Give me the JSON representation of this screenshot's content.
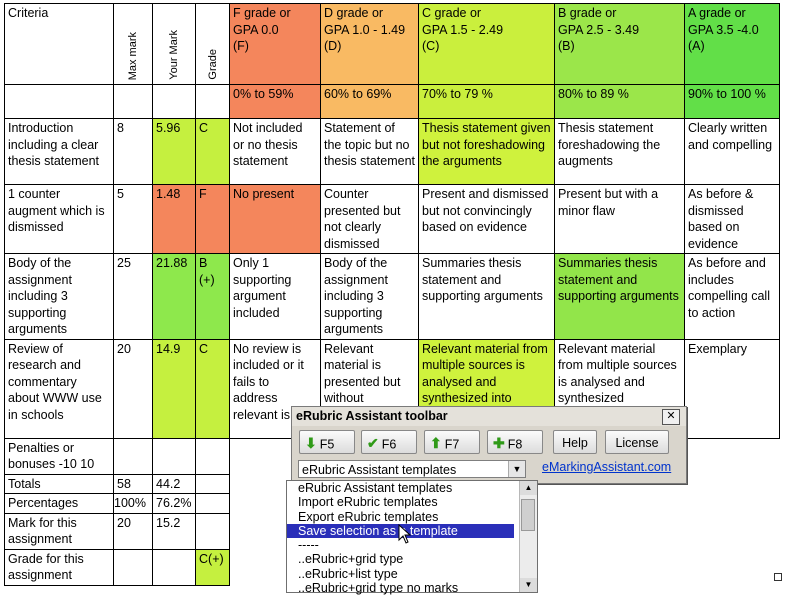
{
  "header": {
    "criteria": "Criteria",
    "max_mark": "Max mark",
    "your_mark": "Your Mark",
    "grade": "Grade",
    "f_head": "F grade or\nGPA 0.0\n(F)",
    "d_head": "D grade or\nGPA 1.0 - 1.49\n(D)",
    "c_head": "C grade or\nGPA 1.5 - 2.49\n(C)",
    "b_head": "B grade or\nGPA 2.5 - 3.49\n(B)",
    "a_head": "A grade or\nGPA 3.5 -4.0\n(A)",
    "f_range": "0% to 59%",
    "d_range": "60% to 69%",
    "c_range": "70% to 79 %",
    "b_range": "80% to 89 %",
    "a_range": "90% to 100 %"
  },
  "rows": [
    {
      "criteria": "Introduction including a clear thesis statement",
      "max": "8",
      "mark": "5.96",
      "grade": "C",
      "f": "Not included or no thesis statement",
      "d": "Statement of the topic but no thesis statement",
      "c": "Thesis statement given but not foreshadowing the arguments",
      "b": "Thesis statement foreshadowing the augments",
      "a": "Clearly written and compelling"
    },
    {
      "criteria": "1 counter augment which is dismissed",
      "max": "5",
      "mark": "1.48",
      "grade": "F",
      "f": "No present",
      "d": "Counter presented but not clearly dismissed",
      "c": "Present and dismissed  but not convincingly  based on evidence",
      "b": "Present but with a minor flaw",
      "a": "As before & dismissed based on evidence"
    },
    {
      "criteria": "Body of the assignment including 3 supporting arguments",
      "max": "25",
      "mark": "21.88",
      "grade": "B (+)",
      "f": "Only 1 supporting argument included",
      "d": "Body of the assignment including 3 supporting arguments",
      "c": "Summaries thesis statement and supporting arguments",
      "b": "Summaries thesis statement and supporting arguments",
      "a": "As before and includes compelling call to action"
    },
    {
      "criteria": "Review of research and commentary about WWW use in schools",
      "max": "20",
      "mark": "14.9",
      "grade": "C",
      "f": "No review is included or it fails to address relevant is",
      "d": "Relevant material is presented but without",
      "c": "Relevant material from multiple sources is analysed and synthesized  into",
      "b": "Relevant material from multiple sources is analysed and synthesized",
      "a": "Exemplary"
    }
  ],
  "summary": [
    {
      "label": "Penalties or bonuses -10 10",
      "max": "",
      "mark": "",
      "grade": ""
    },
    {
      "label": "Totals",
      "max": "58",
      "mark": "44.2",
      "grade": ""
    },
    {
      "label": "Percentages",
      "max": "100%",
      "mark": "76.2%",
      "grade": ""
    },
    {
      "label": "Mark for this assignment",
      "max": "20",
      "mark": "15.2",
      "grade": ""
    },
    {
      "label": "Grade for this assignment",
      "max": "",
      "mark": "",
      "grade": "C(+)"
    }
  ],
  "toolbar": {
    "title": "eRubric Assistant toolbar",
    "close": "✕",
    "f5": "F5",
    "f6": "F6",
    "f7": "F7",
    "f8": "F8",
    "help": "Help",
    "license": "License",
    "select_value": "eRubric Assistant templates",
    "link": "eMarkingAssistant.com"
  },
  "dropdown": {
    "items": [
      "eRubric Assistant templates",
      "Import eRubric templates",
      "Export eRubric templates",
      "Save selection as a template",
      "-----",
      "..eRubric+grid type",
      "..eRubric+list type",
      "..eRubric+grid type no marks"
    ],
    "selected_index": 3
  },
  "colors": {
    "f": "#f4865c",
    "d": "#f9ba63",
    "c": "#caef3d",
    "b": "#9be64a",
    "a": "#62df48"
  }
}
